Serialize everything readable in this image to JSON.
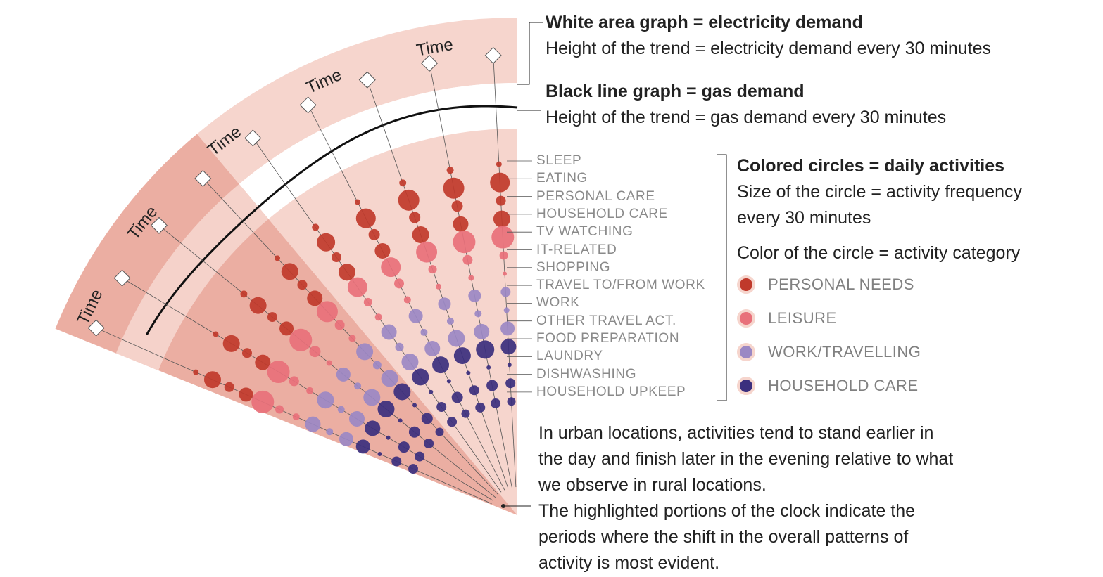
{
  "diagram": {
    "ring_label": "Time",
    "ring_labels_count": 5,
    "colors": {
      "outer_band": "#f6d5cd",
      "highlight": "#ebaea2",
      "inner_band": "#f6d5cd",
      "white_gap": "#ffffff",
      "personal_needs": "#c0392b",
      "leisure": "#e8707a",
      "work_travelling": "#9b88c4",
      "household_care": "#3b2f7e",
      "gas_line": "#111111"
    }
  },
  "annotations": {
    "electricity_title": "White area graph = electricity demand",
    "electricity_desc": "Height of the trend = electricity demand every 30 minutes",
    "gas_title": "Black line graph = gas demand",
    "gas_desc": "Height of the trend = gas demand every 30 minutes",
    "circles_title": "Colored circles = daily activities",
    "circles_desc_1": "Size of the circle = activity frequency",
    "circles_desc_2": "every 30 minutes",
    "color_desc": "Color of the circle = activity category"
  },
  "activities": [
    "SLEEP",
    "EATING",
    "PERSONAL CARE",
    "HOUSEHOLD CARE",
    "TV WATCHING",
    "IT-RELATED",
    "SHOPPING",
    "TRAVEL TO/FROM WORK",
    "WORK",
    "OTHER TRAVEL ACT.",
    "FOOD PREPARATION",
    "LAUNDRY",
    "DISHWASHING",
    "HOUSEHOLD UPKEEP"
  ],
  "categories": [
    {
      "label": "PERSONAL NEEDS",
      "color": "#c0392b"
    },
    {
      "label": "LEISURE",
      "color": "#e8707a"
    },
    {
      "label": "WORK/TRAVELLING",
      "color": "#9b88c4"
    },
    {
      "label": "HOUSEHOLD CARE",
      "color": "#3b2f7e"
    }
  ],
  "footnote": {
    "line_1": "In urban locations, activities tend to stand earlier in",
    "line_2": "the day and finish later in the evening relative to what",
    "line_3": "we observe in rural locations.",
    "line_4": "The highlighted portions of the clock indicate the",
    "line_5": "periods where the shift in the overall patterns of",
    "line_6": "activity is most evident."
  }
}
